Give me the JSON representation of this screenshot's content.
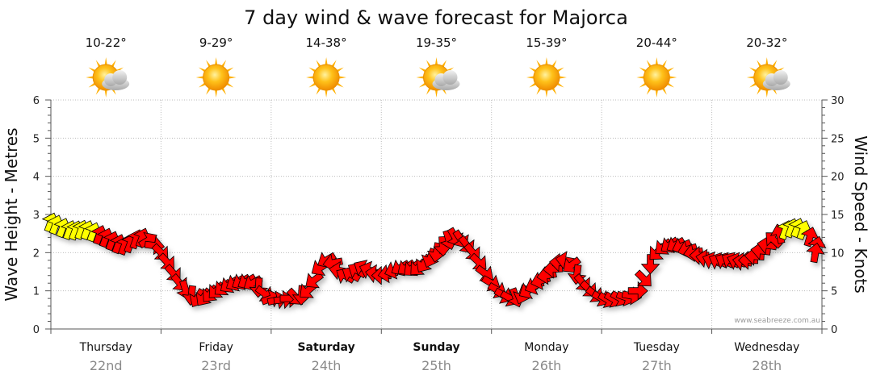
{
  "chart_data": {
    "type": "line",
    "title": "7 day wind & wave forecast for Majorca",
    "ylabel_left": "Wave Height - Metres",
    "ylabel_right": "Wind Speed - Knots",
    "ylim_left": [
      0,
      6
    ],
    "ylim_right": [
      0,
      30
    ],
    "yticks_left": [
      "0",
      "1",
      "2",
      "3",
      "4",
      "5",
      "6"
    ],
    "yticks_right": [
      "0",
      "5",
      "10",
      "15",
      "20",
      "25",
      "30"
    ],
    "grid": true,
    "watermark": "www.seabreeze.com.au",
    "days": [
      {
        "name": "Thursday",
        "date": "22nd",
        "bold": false,
        "temp": "10-22°",
        "icon": "partly-cloudy-icon"
      },
      {
        "name": "Friday",
        "date": "23rd",
        "bold": false,
        "temp": "9-29°",
        "icon": "sun-icon"
      },
      {
        "name": "Saturday",
        "date": "24th",
        "bold": true,
        "temp": "14-38°",
        "icon": "sun-icon"
      },
      {
        "name": "Sunday",
        "date": "25th",
        "bold": true,
        "temp": "19-35°",
        "icon": "partly-cloudy-icon"
      },
      {
        "name": "Monday",
        "date": "26th",
        "bold": false,
        "temp": "15-39°",
        "icon": "sun-icon"
      },
      {
        "name": "Tuesday",
        "date": "27th",
        "bold": false,
        "temp": "20-44°",
        "icon": "sun-icon"
      },
      {
        "name": "Wednesday",
        "date": "28th",
        "bold": false,
        "temp": "20-32°",
        "icon": "partly-cloudy-icon"
      }
    ],
    "series": [
      {
        "name": "Wind Speed - Knots",
        "x_days": [
          0.0,
          0.17,
          0.33,
          0.5,
          0.67,
          0.83,
          1.0,
          1.17,
          1.33,
          1.5,
          1.67,
          1.83,
          2.0,
          2.17,
          2.33,
          2.5,
          2.67,
          2.83,
          3.0,
          3.17,
          3.33,
          3.5,
          3.67,
          3.83,
          4.0,
          4.17,
          4.33,
          4.5,
          4.67,
          4.83,
          5.0,
          5.17,
          5.33,
          5.5,
          5.67,
          5.83,
          6.0,
          6.17,
          6.33,
          6.5,
          6.67,
          6.83,
          7.0
        ],
        "knots": [
          14,
          13,
          13,
          12,
          11,
          12,
          10,
          6,
          4,
          5,
          6,
          6,
          4,
          4,
          5,
          9,
          7,
          8,
          7,
          8,
          8,
          10,
          12,
          10,
          6,
          4,
          5,
          7,
          9,
          6,
          4,
          4,
          5,
          10,
          11,
          10,
          9,
          9,
          9,
          11,
          13,
          13,
          10
        ],
        "direction_deg": [
          200,
          200,
          200,
          200,
          200,
          200,
          315,
          320,
          30,
          45,
          60,
          60,
          250,
          270,
          50,
          60,
          120,
          120,
          90,
          60,
          45,
          10,
          330,
          320,
          300,
          300,
          60,
          80,
          100,
          320,
          300,
          300,
          270,
          45,
          60,
          80,
          110,
          120,
          90,
          100,
          200,
          200,
          190
        ],
        "arrow_colors": {
          "light": "#ffff00",
          "strong": "#ff0000"
        },
        "color_threshold_knots": 12.5
      }
    ]
  }
}
